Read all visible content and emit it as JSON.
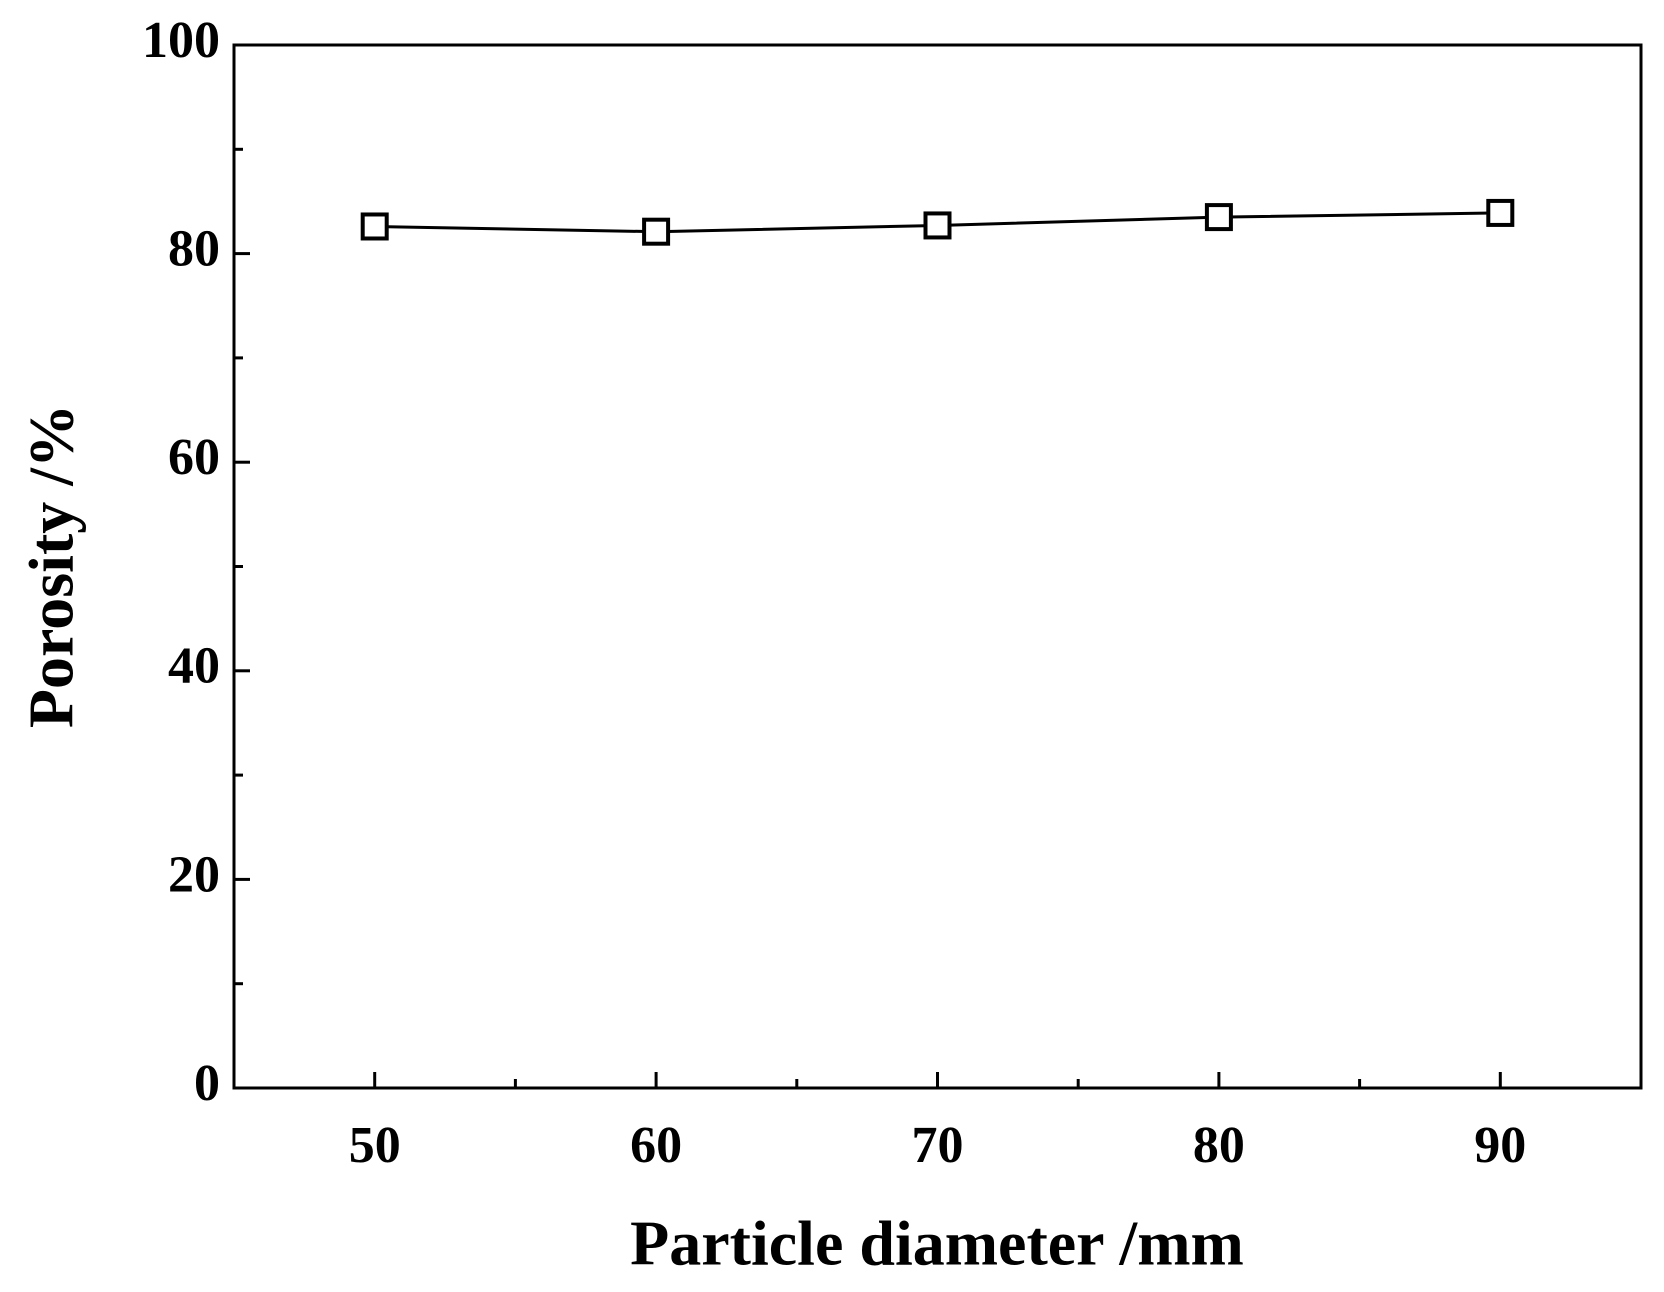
{
  "chart_data": {
    "type": "line",
    "xlabel": "Particle diameter /mm",
    "ylabel": "Porosity /%",
    "x": [
      50,
      60,
      70,
      80,
      90
    ],
    "series": [
      {
        "color": "#000000",
        "marker": "open-square",
        "values": [
          82.6,
          82.1,
          82.7,
          83.5,
          83.9
        ]
      }
    ],
    "xlim": [
      45,
      95
    ],
    "xticks": [
      50,
      60,
      70,
      80,
      90
    ],
    "xminorticks": [
      55,
      65,
      75,
      85
    ],
    "ylim": [
      0,
      100
    ],
    "yticks": [
      0,
      20,
      40,
      60,
      80,
      100
    ],
    "yminorticks": [
      10,
      30,
      50,
      70,
      90
    ],
    "grid": false
  }
}
